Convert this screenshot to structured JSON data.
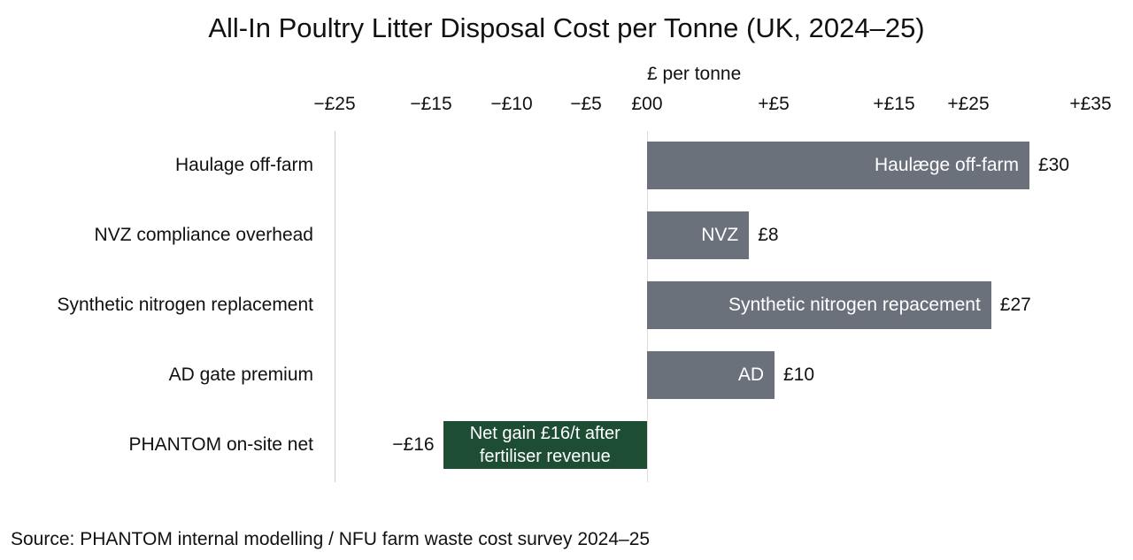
{
  "chart_data": {
    "type": "bar",
    "orientation": "horizontal",
    "title": "All-In Poultry Litter Disposal Cost per Tonne (UK, 2024–25)",
    "xlabel": "£ per tonne",
    "tick_labels": [
      "−£25",
      "−£15",
      "−£10",
      "−£5",
      "£00",
      "+£5",
      "+£15",
      "+£25",
      "+£35"
    ],
    "categories": [
      "Haulage off-farm",
      "NVZ compliance overhead",
      "Synthetic nitrogen replacement",
      "AD gate premium",
      "PHANTOM on-site net"
    ],
    "values": [
      30,
      8,
      27,
      10,
      -16
    ],
    "bar_labels": [
      "Haulæge off-farm",
      "NVZ",
      "Synthetic nitrogen repacement",
      "AD",
      "Net gain £16/t after fertiliser revenue"
    ],
    "value_labels": [
      "£30",
      "£8",
      "£27",
      "£10",
      "−£16"
    ],
    "colors": {
      "cost": "#6b717b",
      "gain": "#1d4d33"
    },
    "grid": false,
    "source": "Source: PHANTOM internal modelling / NFU farm waste cost survey 2024–25"
  }
}
